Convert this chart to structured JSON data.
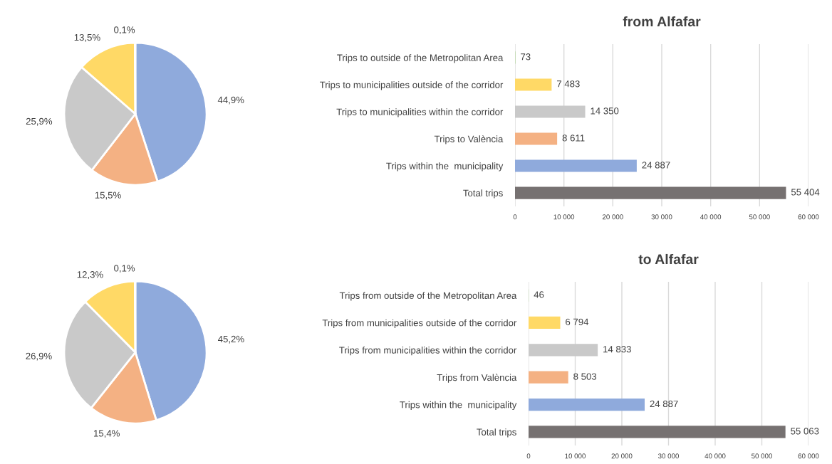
{
  "chart_data": [
    {
      "type": "pie",
      "categories": [
        null,
        null,
        null,
        null,
        null
      ],
      "values": [
        44.9,
        15.5,
        25.9,
        13.5,
        0.1
      ],
      "value_labels": [
        "44,9%",
        "15,5%",
        "25,9%",
        "13,5%",
        "0,1%"
      ],
      "colors": [
        "#8faadc",
        "#f4b183",
        "#c9c9c9",
        "#ffd966",
        "#a9d18e"
      ]
    },
    {
      "type": "bar",
      "orientation": "horizontal",
      "title": "from Alfafar",
      "categories": [
        "Trips to outside of the Metropolitan Area",
        "Trips to municipalities outside of the corridor",
        "Trips to municipalities within the corridor",
        "Trips to València",
        "Trips within the  municipality",
        "Total trips"
      ],
      "values": [
        73,
        7483,
        14350,
        8611,
        24887,
        55404
      ],
      "value_labels": [
        "73",
        "7 483",
        "14 350",
        "8 611",
        "24 887",
        "55 404"
      ],
      "colors": [
        "#a9d18e",
        "#ffd966",
        "#c9c9c9",
        "#f4b183",
        "#8faadc",
        "#767171"
      ],
      "xlim": [
        0,
        60000
      ],
      "xticks": [
        0,
        {
          "value": 10000,
          "label": "10 000"
        },
        {
          "value": 20000,
          "label": "20 000"
        },
        {
          "value": 30000,
          "label": "30 000"
        },
        {
          "value": 40000,
          "label": "40 000"
        },
        {
          "value": 50000,
          "label": "50 000"
        },
        {
          "value": 60000,
          "label": "60 000"
        }
      ],
      "grid": "x"
    },
    {
      "type": "pie",
      "categories": [
        null,
        null,
        null,
        null,
        null
      ],
      "values": [
        45.2,
        15.4,
        26.9,
        12.3,
        0.1
      ],
      "value_labels": [
        "45,2%",
        "15,4%",
        "26,9%",
        "12,3%",
        "0,1%"
      ],
      "colors": [
        "#8faadc",
        "#f4b183",
        "#c9c9c9",
        "#ffd966",
        "#a9d18e"
      ]
    },
    {
      "type": "bar",
      "orientation": "horizontal",
      "title": "to Alfafar",
      "categories": [
        "Trips from outside of the Metropolitan Area",
        "Trips from municipalities outside of the corridor",
        "Trips from municipalities within the corridor",
        "Trips from València",
        "Trips within the  municipality",
        "Total trips"
      ],
      "values": [
        46,
        6794,
        14833,
        8503,
        24887,
        55063
      ],
      "value_labels": [
        "46",
        "6 794",
        "14 833",
        "8 503",
        "24 887",
        "55 063"
      ],
      "colors": [
        "#a9d18e",
        "#ffd966",
        "#c9c9c9",
        "#f4b183",
        "#8faadc",
        "#767171"
      ],
      "xlim": [
        0,
        60000
      ],
      "xticks": [
        0,
        {
          "value": 10000,
          "label": "10 000"
        },
        {
          "value": 20000,
          "label": "20 000"
        },
        {
          "value": 30000,
          "label": "30 000"
        },
        {
          "value": 40000,
          "label": "40 000"
        },
        {
          "value": 50000,
          "label": "50 000"
        },
        {
          "value": 60000,
          "label": "60 000"
        }
      ],
      "grid": "x"
    }
  ]
}
